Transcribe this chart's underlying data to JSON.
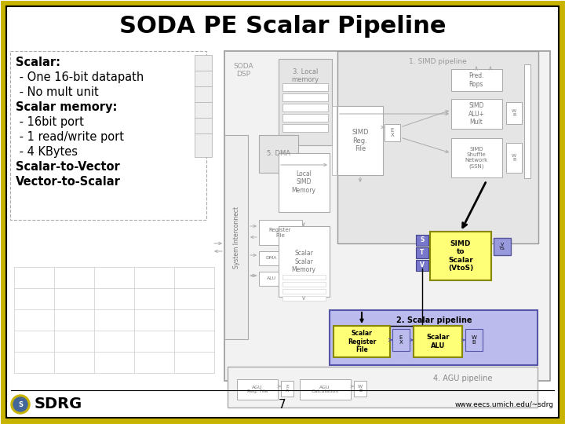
{
  "title": "SODA PE Scalar Pipeline",
  "bg_color": "#ffffff",
  "slide_border_color": "#c8b400",
  "slide_border_inner": "#000000",
  "footer_text_center": "7",
  "footer_text_right": "www.eecs.umich.edu/~sdrg",
  "footer_sdrg": "SDRG",
  "bullet_text": [
    "Scalar:",
    " - One 16-bit datapath",
    " - No mult unit",
    "Scalar memory:",
    " - 16bit port",
    " - 1 read/write port",
    " - 4 KBytes",
    "Scalar-to-Vector",
    "Vector-to-Scalar"
  ],
  "title_fontsize": 22,
  "bullet_fontsize": 10.5
}
